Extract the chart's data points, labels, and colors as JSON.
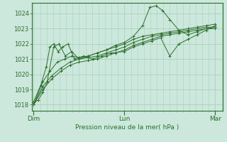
{
  "bg_color": "#cce8dc",
  "grid_color": "#aacfbf",
  "line_color": "#2d6e2d",
  "marker_color": "#2d6e2d",
  "xlabel": "Pression niveau de la mer( hPa )",
  "xlabel_color": "#2d6e2d",
  "xtick_labels": [
    "Dim",
    "Lun",
    "Mar"
  ],
  "xtick_positions": [
    0.0,
    1.0,
    2.0
  ],
  "ytick_min": 1018,
  "ytick_max": 1024,
  "ytick_step": 1,
  "x_min": -0.02,
  "x_max": 2.08,
  "y_min": 1017.6,
  "y_max": 1024.7,
  "series": [
    {
      "x": [
        0.0,
        0.05,
        0.1,
        0.15,
        0.22,
        0.28,
        0.35,
        0.42,
        0.5,
        0.6,
        0.7,
        0.8,
        0.9,
        1.0,
        1.1,
        1.2,
        1.28,
        1.35,
        1.42,
        1.5,
        1.6,
        1.7,
        1.8,
        1.9,
        2.0
      ],
      "y": [
        1018.1,
        1018.3,
        1018.8,
        1019.5,
        1021.8,
        1022.0,
        1021.2,
        1021.5,
        1021.0,
        1021.2,
        1021.4,
        1021.6,
        1021.9,
        1022.1,
        1022.5,
        1023.2,
        1024.4,
        1024.5,
        1024.2,
        1023.6,
        1022.9,
        1022.6,
        1022.8,
        1023.0,
        1023.1
      ],
      "marker": "+"
    },
    {
      "x": [
        0.0,
        0.08,
        0.14,
        0.18,
        0.22,
        0.27,
        0.32,
        0.38,
        0.45,
        0.55,
        0.65,
        0.75,
        0.85,
        1.0,
        1.1,
        1.2,
        1.3,
        1.4,
        1.5,
        1.6,
        1.7,
        1.8,
        1.9,
        2.0
      ],
      "y": [
        1018.2,
        1019.3,
        1020.5,
        1021.8,
        1022.0,
        1021.5,
        1021.8,
        1022.0,
        1021.0,
        1021.2,
        1021.0,
        1021.2,
        1021.4,
        1021.5,
        1021.8,
        1022.0,
        1022.2,
        1022.4,
        1021.2,
        1022.0,
        1022.3,
        1022.6,
        1022.9,
        1023.2
      ],
      "marker": "+"
    },
    {
      "x": [
        0.0,
        0.1,
        0.2,
        0.3,
        0.4,
        0.5,
        0.6,
        0.7,
        0.8,
        0.9,
        1.0,
        1.1,
        1.2,
        1.3,
        1.4,
        1.5,
        1.6,
        1.7,
        1.8,
        1.9,
        2.0
      ],
      "y": [
        1018.0,
        1019.0,
        1019.7,
        1020.2,
        1020.6,
        1020.8,
        1020.9,
        1021.0,
        1021.2,
        1021.4,
        1021.6,
        1021.9,
        1022.1,
        1022.3,
        1022.5,
        1022.6,
        1022.7,
        1022.8,
        1022.9,
        1023.0,
        1023.0
      ],
      "marker": "+"
    },
    {
      "x": [
        0.0,
        0.1,
        0.2,
        0.3,
        0.4,
        0.5,
        0.6,
        0.7,
        0.8,
        0.9,
        1.0,
        1.1,
        1.2,
        1.3,
        1.4,
        1.5,
        1.6,
        1.7,
        1.8,
        1.9,
        2.0
      ],
      "y": [
        1018.0,
        1019.2,
        1019.9,
        1020.4,
        1020.8,
        1021.0,
        1021.1,
        1021.2,
        1021.4,
        1021.6,
        1021.8,
        1022.1,
        1022.3,
        1022.5,
        1022.6,
        1022.7,
        1022.8,
        1022.9,
        1023.0,
        1023.1,
        1023.1
      ],
      "marker": "+"
    },
    {
      "x": [
        0.0,
        0.1,
        0.18,
        0.26,
        0.34,
        0.42,
        0.5,
        0.6,
        0.7,
        0.8,
        0.9,
        1.0,
        1.1,
        1.2,
        1.3,
        1.4,
        1.5,
        1.6,
        1.7,
        1.8,
        1.9,
        2.0
      ],
      "y": [
        1018.0,
        1019.5,
        1020.2,
        1020.8,
        1021.0,
        1021.2,
        1021.1,
        1021.2,
        1021.4,
        1021.6,
        1021.8,
        1022.0,
        1022.3,
        1022.5,
        1022.6,
        1022.7,
        1022.8,
        1022.9,
        1023.0,
        1023.1,
        1023.2,
        1023.3
      ],
      "marker": "+"
    }
  ]
}
